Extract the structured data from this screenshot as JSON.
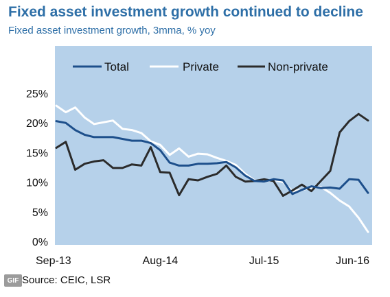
{
  "header": {
    "title": "Fixed asset investment growth continued to decline",
    "subtitle": "Fixed asset investment growth, 3mma, % yoy"
  },
  "footer": {
    "source": "Source: CEIC, LSR",
    "badge": "GIF"
  },
  "colors": {
    "plot_bg": "#b6d1ea",
    "total": "#1d4f8b",
    "private": "#ffffff",
    "nonprivate": "#2b2b2b"
  },
  "chart_data": {
    "type": "line",
    "title": "Fixed asset investment growth continued to decline",
    "subtitle": "Fixed asset investment growth, 3mma, % yoy",
    "xlabel": "",
    "ylabel": "",
    "ylim": [
      0,
      25
    ],
    "yticks": [
      "0%",
      "5%",
      "10%",
      "15%",
      "20%",
      "25%"
    ],
    "yticks_values": [
      0,
      5,
      10,
      15,
      20,
      25
    ],
    "xticks": [
      "Sep-13",
      "Aug-14",
      "Jul-15",
      "Jun-16"
    ],
    "x": [
      "Sep-13",
      "Oct-13",
      "Nov-13",
      "Dec-13",
      "Jan-14",
      "Feb-14",
      "Mar-14",
      "Apr-14",
      "May-14",
      "Jun-14",
      "Jul-14",
      "Aug-14",
      "Sep-14",
      "Oct-14",
      "Nov-14",
      "Dec-14",
      "Jan-15",
      "Feb-15",
      "Mar-15",
      "Apr-15",
      "May-15",
      "Jun-15",
      "Jul-15",
      "Aug-15",
      "Sep-15",
      "Oct-15",
      "Nov-15",
      "Dec-15",
      "Jan-16",
      "Feb-16",
      "Mar-16",
      "Apr-16",
      "May-16",
      "Jun-16"
    ],
    "grid": false,
    "legend": "top",
    "series": [
      {
        "name": "Total",
        "color": "#1d4f8b",
        "values": [
          20.3,
          20.0,
          18.8,
          18.0,
          17.6,
          17.6,
          17.6,
          17.3,
          17.0,
          17.0,
          16.6,
          15.4,
          13.3,
          12.8,
          12.8,
          13.1,
          13.1,
          13.2,
          13.4,
          12.5,
          11.1,
          10.2,
          10.1,
          10.5,
          10.3,
          8.0,
          8.7,
          9.3,
          9.0,
          9.1,
          8.9,
          10.5,
          10.4,
          8.2
        ]
      },
      {
        "name": "Private",
        "color": "#ffffff",
        "values": [
          22.9,
          21.8,
          22.6,
          20.9,
          19.8,
          20.1,
          20.4,
          19.0,
          18.8,
          18.3,
          16.9,
          16.3,
          14.6,
          15.7,
          14.3,
          14.8,
          14.7,
          14.1,
          13.6,
          12.9,
          11.4,
          10.3,
          10.1,
          10.4,
          10.0,
          8.5,
          8.7,
          9.0,
          9.2,
          8.2,
          6.9,
          5.9,
          4.0,
          1.6
        ]
      },
      {
        "name": "Non-private",
        "color": "#2b2b2b",
        "values": [
          15.8,
          16.8,
          12.1,
          13.1,
          13.5,
          13.7,
          12.4,
          12.4,
          13.0,
          12.8,
          15.9,
          11.7,
          11.6,
          7.8,
          10.5,
          10.3,
          10.9,
          11.4,
          12.8,
          10.9,
          10.1,
          10.2,
          10.5,
          10.2,
          7.7,
          8.6,
          9.6,
          8.5,
          10.2,
          11.9,
          18.4,
          20.3,
          21.5,
          20.4
        ]
      }
    ]
  }
}
